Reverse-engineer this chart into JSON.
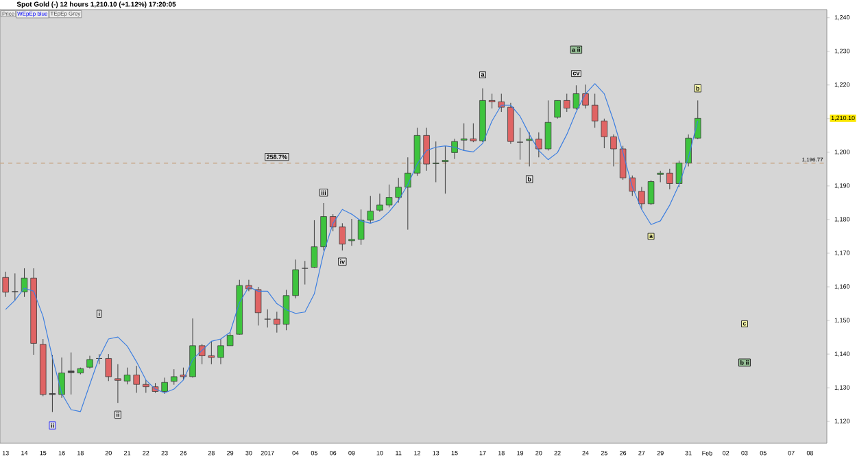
{
  "chart_data": {
    "type": "candlestick",
    "title": "Spot Gold (-)   12 hours   1,210.10 (+1.12%)   17:20:05",
    "categories": [
      "13",
      null,
      "14",
      null,
      "15",
      null,
      "16",
      null,
      "18",
      null,
      null,
      "20",
      null,
      "21",
      null,
      "22",
      null,
      "23",
      null,
      "26",
      null,
      null,
      "28",
      null,
      "29",
      null,
      "30",
      null,
      "2017",
      null,
      null,
      "04",
      null,
      "05",
      null,
      "06",
      null,
      "09",
      null,
      null,
      "10",
      null,
      "11",
      null,
      "12",
      null,
      "13",
      null,
      "15",
      null,
      null,
      "17",
      null,
      "18",
      null,
      "19",
      null,
      "20",
      null,
      "22",
      null,
      null,
      "24",
      null,
      "25",
      null,
      "26",
      null,
      "27",
      null,
      "29",
      null,
      null,
      "31",
      null,
      "Feb",
      null,
      "02",
      null,
      "03",
      null,
      "05",
      null,
      null,
      "07",
      null,
      "08",
      null
    ],
    "ohlc": [
      [
        1162.8,
        1164.5,
        1157,
        1158.4
      ],
      [
        1158.5,
        1164,
        1156,
        1158.6
      ],
      [
        1158.5,
        1165.5,
        1157,
        1162.6
      ],
      [
        1162.6,
        1165.5,
        1139.8,
        1143.2
      ],
      [
        1142.9,
        1144.5,
        1127.5,
        1128.0
      ],
      [
        1128.0,
        1139.8,
        1122.8,
        1128.3
      ],
      [
        1128.0,
        1139.0,
        1127.0,
        1134.4
      ],
      [
        1134.5,
        1140.5,
        1128.0,
        1135.0
      ],
      [
        1134.4,
        1136.0,
        1134.0,
        1135.7
      ],
      [
        1136.1,
        1139.5,
        1135.7,
        1138.4
      ],
      [
        1138.7,
        1140.0,
        1137.0,
        1138.7
      ],
      [
        1138.7,
        1140.0,
        1132.0,
        1133.3
      ],
      [
        1132.7,
        1137.0,
        1125.5,
        1132.2
      ],
      [
        1132.0,
        1136.0,
        1131.0,
        1133.8
      ],
      [
        1133.8,
        1136.5,
        1128.5,
        1131.0
      ],
      [
        1131.0,
        1132.3,
        1128.5,
        1130.3
      ],
      [
        1130.3,
        1131.4,
        1128.5,
        1128.9
      ],
      [
        1128.9,
        1133.0,
        1128.2,
        1131.6
      ],
      [
        1131.9,
        1135.5,
        1130.9,
        1133.3
      ],
      [
        1133.8,
        1136.0,
        1132.3,
        1133.3
      ],
      [
        1133.3,
        1150.6,
        1133.0,
        1142.5
      ],
      [
        1142.5,
        1143.0,
        1137.0,
        1139.5
      ],
      [
        1139.5,
        1143.8,
        1137.0,
        1139.0
      ],
      [
        1139.0,
        1144.5,
        1137.0,
        1142.5
      ],
      [
        1142.5,
        1146.5,
        1142.5,
        1145.6
      ],
      [
        1145.9,
        1162.1,
        1145.8,
        1160.4
      ],
      [
        1160.4,
        1162.1,
        1158.7,
        1159.4
      ],
      [
        1159.2,
        1160.0,
        1148.5,
        1152.3
      ],
      [
        1150.4,
        1153.3,
        1147.9,
        1150.4
      ],
      [
        1150.4,
        1152.6,
        1146.4,
        1148.9
      ],
      [
        1148.9,
        1159.1,
        1147.1,
        1157.4
      ],
      [
        1157.4,
        1168.1,
        1156.6,
        1165.1
      ],
      [
        1165.5,
        1167.7,
        1160.7,
        1165.5
      ],
      [
        1165.8,
        1179.8,
        1165.6,
        1171.9
      ],
      [
        1171.9,
        1184.9,
        1170.8,
        1180.9
      ],
      [
        1180.9,
        1181.6,
        1176.5,
        1177.8
      ],
      [
        1177.8,
        1178.9,
        1170.8,
        1172.7
      ],
      [
        1173.7,
        1180.2,
        1172.2,
        1174.1
      ],
      [
        1174.1,
        1183.0,
        1172.5,
        1179.8
      ],
      [
        1179.8,
        1187.0,
        1178.9,
        1182.5
      ],
      [
        1182.8,
        1187.7,
        1182.3,
        1184.3
      ],
      [
        1184.3,
        1190.4,
        1183.6,
        1186.6
      ],
      [
        1186.6,
        1192.4,
        1185.0,
        1189.6
      ],
      [
        1189.6,
        1198.5,
        1177.0,
        1193.8
      ],
      [
        1193.8,
        1207.3,
        1193.0,
        1205.0
      ],
      [
        1205.0,
        1207.3,
        1194.5,
        1196.5
      ],
      [
        1196.6,
        1203.2,
        1191.1,
        1196.8
      ],
      [
        1197.2,
        1201.9,
        1187.7,
        1197.6
      ],
      [
        1199.9,
        1204.0,
        1198.0,
        1203.2
      ],
      [
        1203.6,
        1208.6,
        1200.5,
        1204.0
      ],
      [
        1204.0,
        1208.6,
        1203.0,
        1203.4
      ],
      [
        1203.4,
        1219.0,
        1203.0,
        1215.4
      ],
      [
        1215.4,
        1217.4,
        1213.0,
        1215.0
      ],
      [
        1215.0,
        1217.4,
        1212.0,
        1213.4
      ],
      [
        1213.4,
        1214.7,
        1202.5,
        1203.2
      ],
      [
        1203.0,
        1207.3,
        1197.8,
        1203.0
      ],
      [
        1203.5,
        1205.9,
        1195.8,
        1203.9
      ],
      [
        1203.9,
        1205.9,
        1198.5,
        1201.0
      ],
      [
        1201.0,
        1215.4,
        1200.5,
        1208.9
      ],
      [
        1210.4,
        1215.4,
        1210.0,
        1215.4
      ],
      [
        1215.4,
        1217.4,
        1212.0,
        1213.1
      ],
      [
        1213.1,
        1219.9,
        1212.7,
        1217.4
      ],
      [
        1217.4,
        1220.1,
        1213.0,
        1214.0
      ],
      [
        1214.0,
        1217.4,
        1207.3,
        1209.3
      ],
      [
        1209.3,
        1210.0,
        1201.2,
        1204.6
      ],
      [
        1204.6,
        1205.3,
        1195.8,
        1201.0
      ],
      [
        1201.0,
        1201.9,
        1191.8,
        1192.4
      ],
      [
        1192.4,
        1193.1,
        1187.0,
        1188.4
      ],
      [
        1188.4,
        1189.7,
        1183.0,
        1184.7
      ],
      [
        1184.7,
        1191.7,
        1184.3,
        1191.3
      ],
      [
        1193.4,
        1194.5,
        1191.1,
        1193.8
      ],
      [
        1193.8,
        1195.1,
        1189.0,
        1190.7
      ],
      [
        1190.7,
        1197.5,
        1189.7,
        1196.8
      ],
      [
        1196.8,
        1205.3,
        1195.8,
        1204.2
      ],
      [
        1204.2,
        1215.4,
        1203.9,
        1210.1
      ],
      null,
      null,
      null,
      null,
      null,
      null,
      null,
      null,
      null,
      null,
      null,
      null,
      null
    ],
    "colors": [
      "#e06464",
      "#404040",
      "#3ec43e",
      "#e06464",
      "#e06464",
      "#404040",
      "#3ec43e",
      "#404040",
      "#3ec43e",
      "#3ec43e",
      "#404040",
      "#e06464",
      "#e06464",
      "#3ec43e",
      "#e06464",
      "#e06464",
      "#e06464",
      "#3ec43e",
      "#3ec43e",
      "#e06464",
      "#3ec43e",
      "#e06464",
      "#e06464",
      "#3ec43e",
      "#3ec43e",
      "#3ec43e",
      "#e06464",
      "#e06464",
      "#404040",
      "#e06464",
      "#3ec43e",
      "#3ec43e",
      "#404040",
      "#3ec43e",
      "#3ec43e",
      "#e06464",
      "#e06464",
      "#3ec43e",
      "#3ec43e",
      "#3ec43e",
      "#3ec43e",
      "#3ec43e",
      "#3ec43e",
      "#3ec43e",
      "#3ec43e",
      "#e06464",
      "#3ec43e",
      "#3ec43e",
      "#3ec43e",
      "#3ec43e",
      "#e06464",
      "#3ec43e",
      "#e06464",
      "#e06464",
      "#e06464",
      "#404040",
      "#3ec43e",
      "#e06464",
      "#3ec43e",
      "#3ec43e",
      "#e06464",
      "#3ec43e",
      "#e06464",
      "#e06464",
      "#e06464",
      "#e06464",
      "#e06464",
      "#e06464",
      "#e06464",
      "#3ec43e",
      "#3ec43e",
      "#e06464",
      "#3ec43e",
      "#3ec43e",
      "#3ec43e",
      null,
      null,
      null,
      null,
      null,
      null,
      null,
      null,
      null,
      null,
      null,
      null,
      null
    ],
    "series": [
      {
        "type": "line",
        "color": "#3d7fe0",
        "values": [
          1153.3,
          1156,
          1159.6,
          1158.7,
          1151.2,
          1139,
          1128.3,
          1123.5,
          1122.9,
          1131,
          1139,
          1144.5,
          1145.1,
          1142.4,
          1137.7,
          1132.3,
          1129.6,
          1128.5,
          1129.6,
          1132.3,
          1138.4,
          1141.1,
          1143.8,
          1144.5,
          1146.5,
          1155.3,
          1160,
          1158.7,
          1158.7,
          1155,
          1153.2,
          1152.1,
          1152.5,
          1157.9,
          1170.1,
          1178.9,
          1183,
          1181.6,
          1179.6,
          1178.9,
          1179.8,
          1182.3,
          1185.7,
          1190.4,
          1196.5,
          1200.5,
          1201.5,
          1201.9,
          1201.5,
          1200.5,
          1200.1,
          1202.6,
          1209.3,
          1214,
          1214,
          1210.7,
          1205.3,
          1200.5,
          1197.8,
          1199.9,
          1205.3,
          1212,
          1217.4,
          1220.4,
          1217.4,
          1209.3,
          1199.9,
          1189.7,
          1183,
          1178.5,
          1179.6,
          1184.3,
          1190.4,
          1198.5,
          1209.3,
          null,
          null,
          null,
          null,
          null,
          null,
          null,
          null,
          null,
          null,
          null,
          null,
          null
        ]
      }
    ],
    "ylim": [
      1113.5,
      1242.4
    ],
    "yticks": [
      {
        "value": 1120,
        "label": "1,120"
      },
      {
        "value": 1130,
        "label": "1,130"
      },
      {
        "value": 1140,
        "label": "1,140"
      },
      {
        "value": 1150,
        "label": "1,150"
      },
      {
        "value": 1160,
        "label": "1,160"
      },
      {
        "value": 1170,
        "label": "1,170"
      },
      {
        "value": 1180,
        "label": "1,180"
      },
      {
        "value": 1190,
        "label": "1,190"
      },
      {
        "value": 1200,
        "label": "1,200"
      },
      {
        "value": 1210,
        "label": null
      },
      {
        "value": 1220,
        "label": "1,220"
      },
      {
        "value": 1230,
        "label": "1,230"
      },
      {
        "value": 1240,
        "label": "1,240"
      }
    ],
    "ref_lines": [
      {
        "axis": "y",
        "value": 1196.77,
        "label": "1,196.77",
        "color": "#c8a888",
        "line_style": "dashed"
      }
    ],
    "annotations": [
      "Price",
      "WEpEp blue",
      "TEpEp Grey",
      "258.7%",
      "iii",
      "iv",
      "a",
      "b",
      "a ii",
      "cv",
      "b",
      "a",
      "c",
      "b ii",
      "i",
      "ii",
      "ii",
      "1,210.10"
    ]
  }
}
